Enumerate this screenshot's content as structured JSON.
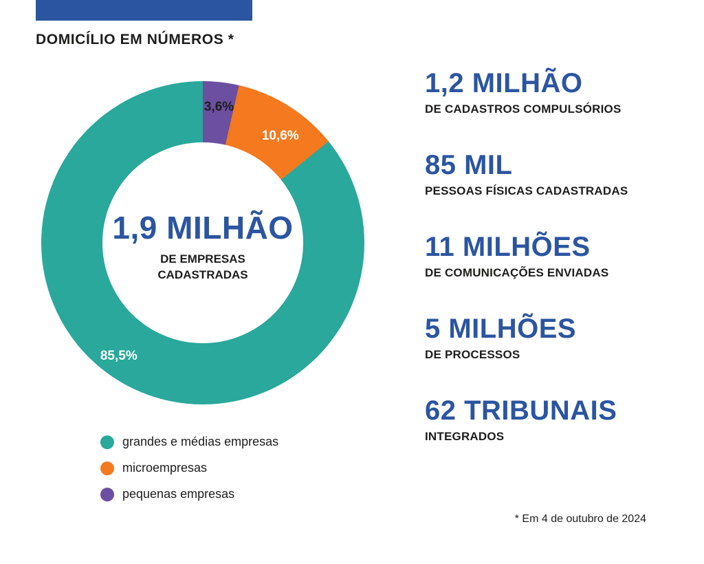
{
  "header": {
    "title": "DOMICÍLIO EM NÚMEROS *"
  },
  "colors": {
    "accent_blue": "#2b55a0",
    "text_dark": "#1d1d1b",
    "teal": "#29a89b",
    "orange": "#f4791f",
    "purple": "#6c4fa1"
  },
  "chart_data": {
    "type": "pie",
    "subtype": "donut",
    "start_angle_deg": 0,
    "title": "DOMICÍLIO EM NÚMEROS *",
    "center_value": "1,9 MILHÃO",
    "center_label": "DE EMPRESAS CADASTRADAS",
    "segments": [
      {
        "name": "pequenas empresas",
        "value_pct": 3.6,
        "label": "3,6%",
        "color": "#6c4fa1"
      },
      {
        "name": "microempresas",
        "value_pct": 10.6,
        "label": "10,6%",
        "color": "#f4791f"
      },
      {
        "name": "grandes e médias empresas",
        "value_pct": 85.5,
        "label": "85,5%",
        "color": "#29a89b"
      }
    ],
    "legend_position": "bottom-left"
  },
  "stats": [
    {
      "value": "1,2 MILHÃO",
      "label": "DE CADASTROS COMPULSÓRIOS"
    },
    {
      "value": "85 MIL",
      "label": "PESSOAS FÍSICAS CADASTRADAS"
    },
    {
      "value": "11 MILHÕES",
      "label": "DE COMUNICAÇÕES ENVIADAS"
    },
    {
      "value": "5 MILHÕES",
      "label": "DE PROCESSOS"
    },
    {
      "value": "62 TRIBUNAIS",
      "label": "INTEGRADOS"
    }
  ],
  "footnote": "* Em 4 de outubro de 2024"
}
